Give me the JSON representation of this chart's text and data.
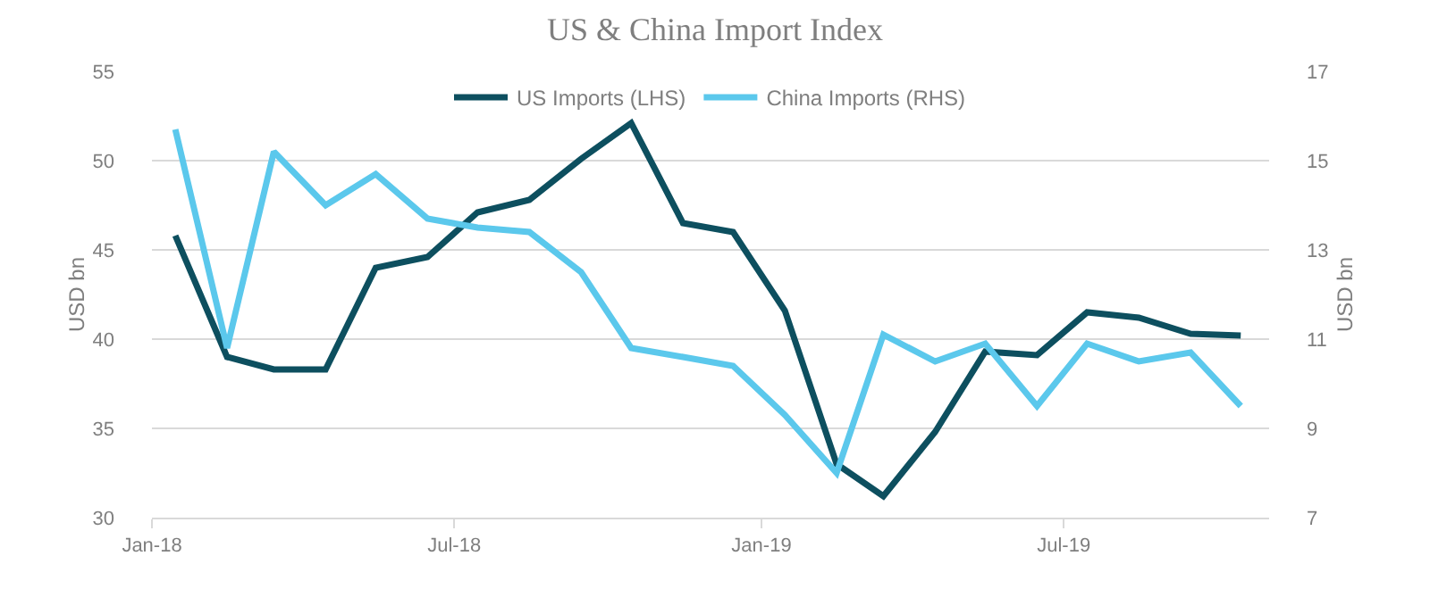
{
  "chart_data": {
    "type": "line",
    "title": "US & China Import Index",
    "ylabel": "USD bn",
    "y2label": "USD bn",
    "x": [
      "2018-01-15",
      "2018-02-15",
      "2018-03-15",
      "2018-04-15",
      "2018-05-15",
      "2018-06-15",
      "2018-07-15",
      "2018-08-15",
      "2018-09-15",
      "2018-10-15",
      "2018-11-15",
      "2018-12-15",
      "2019-01-15",
      "2019-02-15",
      "2019-03-15",
      "2019-04-15",
      "2019-05-15",
      "2019-06-15",
      "2019-07-15",
      "2019-08-15",
      "2019-09-15",
      "2019-10-15"
    ],
    "series": [
      {
        "name": "US Imports (LHS)",
        "color": "#0d4f5f",
        "values": [
          45.8,
          39.0,
          38.3,
          38.3,
          44.0,
          44.6,
          47.1,
          47.8,
          50.1,
          52.1,
          46.5,
          46.0,
          41.6,
          33.0,
          31.2,
          34.8,
          39.3,
          39.1,
          41.5,
          41.2,
          40.3,
          40.2
        ]
      },
      {
        "name": "China Imports (RHS)",
        "color": "#5bc8ec",
        "axis": "y2",
        "values": [
          15.7,
          10.8,
          15.2,
          14.0,
          14.7,
          13.7,
          13.5,
          13.4,
          12.5,
          10.8,
          10.6,
          10.4,
          9.3,
          8.0,
          11.1,
          10.5,
          10.9,
          9.5,
          10.9,
          10.5,
          10.7,
          9.5
        ]
      }
    ],
    "xlim": [
      "2018-01-01",
      "2019-11-01"
    ],
    "xticks": [
      {
        "value": "2018-01-01",
        "label": "Jan-18"
      },
      {
        "value": "2018-07-01",
        "label": "Jul-18"
      },
      {
        "value": "2019-01-01",
        "label": "Jan-19"
      },
      {
        "value": "2019-07-01",
        "label": "Jul-19"
      }
    ],
    "ylim": [
      30,
      55
    ],
    "yticks": [
      30,
      35,
      40,
      45,
      50,
      55
    ],
    "y2lim": [
      7,
      17
    ],
    "y2ticks": [
      7,
      9,
      11,
      13,
      15,
      17
    ],
    "grid": "y",
    "legend": "top",
    "marker": "none",
    "line_style": "solid"
  }
}
